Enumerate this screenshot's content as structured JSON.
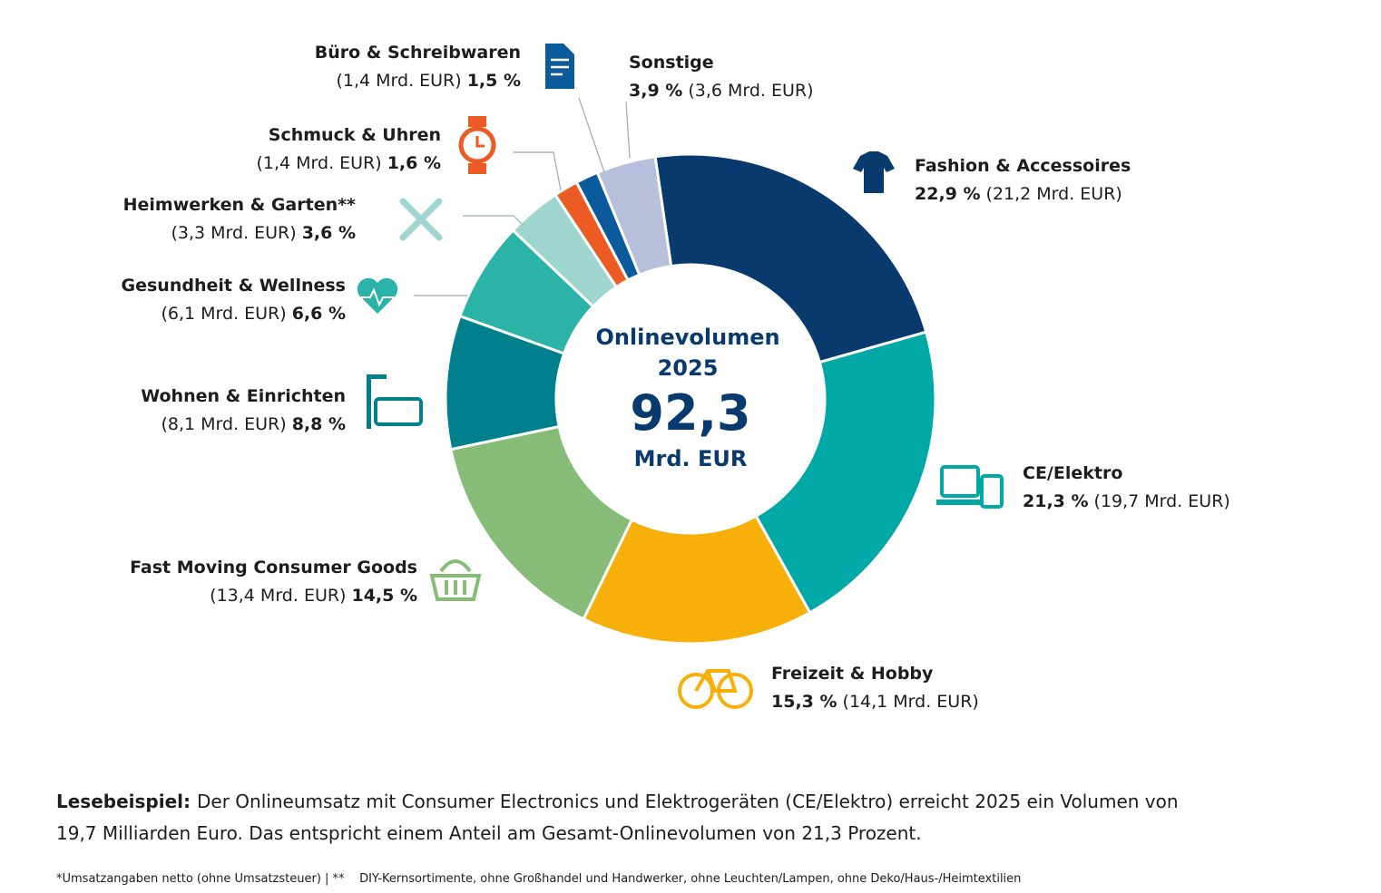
{
  "chart_data": {
    "type": "donut",
    "center_label": [
      "Onlinevolumen",
      "2025"
    ],
    "total": 92.3,
    "total_label": "92,3",
    "total_unit": "Mrd. EUR",
    "categories": [
      "Fashion & Accessoires",
      "CE/Elektro",
      "Freizeit & Hobby",
      "Fast Moving Consumer Goods",
      "Wohnen & Einrichten",
      "Gesundheit & Wellness",
      "Heimwerken & Garten**",
      "Schmuck & Uhren",
      "Büro & Schreibwaren",
      "Sonstige"
    ],
    "values": [
      22.9,
      21.3,
      15.3,
      14.5,
      8.8,
      6.6,
      3.6,
      1.6,
      1.5,
      3.9
    ],
    "value_labels": [
      "22,9 %",
      "21,3 %",
      "15,3 %",
      "14,5 %",
      "8,8 %",
      "6,6 %",
      "3,6 %",
      "1,6 %",
      "1,5 %",
      "3,9 %"
    ],
    "volumes": [
      21.2,
      19.7,
      14.1,
      13.4,
      8.1,
      6.1,
      3.3,
      1.4,
      1.4,
      3.6
    ],
    "volume_labels": [
      "(21,2 Mrd. EUR)",
      "(19,7 Mrd. EUR)",
      "(14,1 Mrd. EUR)",
      "(13,4 Mrd. EUR)",
      "(8,1 Mrd. EUR)",
      "(6,1 Mrd. EUR)",
      "(3,3 Mrd. EUR)",
      "(1,4 Mrd. EUR)",
      "(1,4 Mrd. EUR)",
      "(3,6 Mrd. EUR)"
    ],
    "colors": [
      "#083a6e",
      "#00a9a5",
      "#f7b00a",
      "#86bc78",
      "#00808c",
      "#2bb3a7",
      "#9fd5cf",
      "#ec5b24",
      "#0b5b9c",
      "#b7bfdb"
    ]
  },
  "reading_example": {
    "lead": "Lesebeispiel:",
    "lines": [
      "Der Onlineumsatz mit Consumer Electronics und Elektrogeräten (CE/Elektro) erreicht 2025 ein Volumen von",
      "19,7 Milliarden Euro. Das entspricht einem Anteil am Gesamt-Onlinevolumen von 21,3 Prozent."
    ]
  },
  "footnote": "*Umsatzangaben netto (ohne Umsatzsteuer) | **    DIY-Kernsortimente, ohne Großhandel und Handwerker, ohne Leuchten/Lampen, ohne Deko/Haus-/Heimtextilien"
}
